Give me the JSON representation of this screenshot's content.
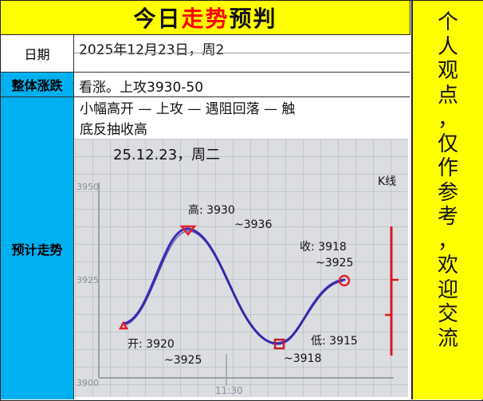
{
  "title": {
    "prefix": "今日",
    "highlight": "走势",
    "suffix": "预判"
  },
  "side_text": [
    "个",
    "人",
    "观",
    "点",
    "，",
    "仅",
    "作",
    "参",
    "考",
    "，",
    "欢",
    "迎",
    "交",
    "流"
  ],
  "rows": {
    "date": {
      "label": "日期",
      "value": "2025年12月23日，周2"
    },
    "overall": {
      "label": "整体涨跌",
      "value": "看涨。上攻3930-50"
    },
    "forecast": {
      "label": "预计走势",
      "line1": "小幅高开 — 上攻 — 遇阻回落 — 触",
      "line2": "底反抽收高"
    }
  },
  "sketch": {
    "heading": "25.12.23，周二",
    "k_label": "K线",
    "y_ticks": [
      "3950",
      "3925",
      "3900"
    ],
    "x_tick": "11:30",
    "annotations": {
      "high": [
        "高: 3930",
        "~3936"
      ],
      "close": [
        "收: 3918",
        "~3925"
      ],
      "open": [
        "开: 3920",
        "~3925"
      ],
      "low": [
        "低: 3915",
        "~3918"
      ]
    }
  }
}
